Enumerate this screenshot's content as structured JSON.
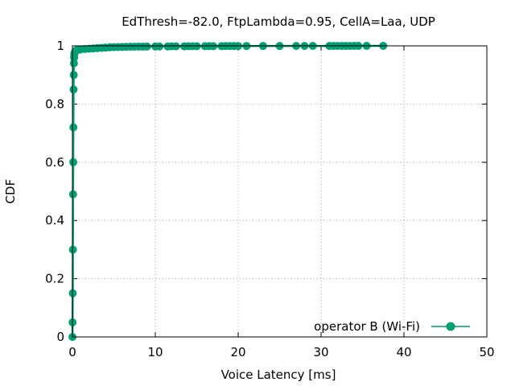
{
  "chart_data": {
    "type": "line",
    "title": "EdThresh=-82.0, FtpLambda=0.95, CellA=Laa, UDP",
    "xlabel": "Voice Latency [ms]",
    "ylabel": "CDF",
    "xlim": [
      0,
      50
    ],
    "ylim": [
      0,
      1
    ],
    "xticks": [
      "0",
      "10",
      "20",
      "30",
      "40",
      "50"
    ],
    "yticks": [
      "0",
      "0.2",
      "0.4",
      "0.6",
      "0.8",
      "1"
    ],
    "grid": true,
    "legend_position": "bottom-right",
    "series": [
      {
        "name": "operator B (Wi-Fi)",
        "color": "#009e73",
        "marker": "circle",
        "x": [
          0,
          0.02,
          0.04,
          0.06,
          0.08,
          0.1,
          0.12,
          0.14,
          0.16,
          0.18,
          0.2,
          0.22,
          0.25,
          0.3,
          0.35,
          0.4,
          0.45,
          0.5,
          0.6,
          0.8,
          1.0,
          1.5,
          2.0,
          2.5,
          3.0,
          3.5,
          4.0,
          4.5,
          5.0,
          5.5,
          6.0,
          6.5,
          7.0,
          7.5,
          8.0,
          8.5,
          9.0,
          10.0,
          10.5,
          11.5,
          12.0,
          12.5,
          13.5,
          14.0,
          14.5,
          15.0,
          16.0,
          16.5,
          17.0,
          18.0,
          18.5,
          19.0,
          19.5,
          20.0,
          21.0,
          23.0,
          25.0,
          27.0,
          28.0,
          29.0,
          31.0,
          31.5,
          32.0,
          32.5,
          33.0,
          33.5,
          34.0,
          34.5,
          35.5,
          37.5
        ],
        "y": [
          0.0,
          0.05,
          0.15,
          0.3,
          0.49,
          0.6,
          0.72,
          0.85,
          0.9,
          0.94,
          0.96,
          0.97,
          0.975,
          0.978,
          0.98,
          0.982,
          0.984,
          0.985,
          0.986,
          0.987,
          0.988,
          0.989,
          0.99,
          0.991,
          0.992,
          0.993,
          0.994,
          0.995,
          0.9955,
          0.996,
          0.9963,
          0.9966,
          0.9969,
          0.997,
          0.9972,
          0.9974,
          0.9976,
          0.9978,
          0.998,
          0.9981,
          0.9982,
          0.9983,
          0.9984,
          0.9985,
          0.9986,
          0.9987,
          0.9988,
          0.9989,
          0.999,
          0.9991,
          0.9992,
          0.9993,
          0.9993,
          0.9994,
          0.9994,
          0.9995,
          0.9995,
          0.9996,
          0.9996,
          0.9996,
          0.9997,
          0.9997,
          0.9997,
          0.9998,
          0.9998,
          0.9998,
          0.9999,
          0.9999,
          0.9999,
          1.0
        ]
      }
    ]
  }
}
